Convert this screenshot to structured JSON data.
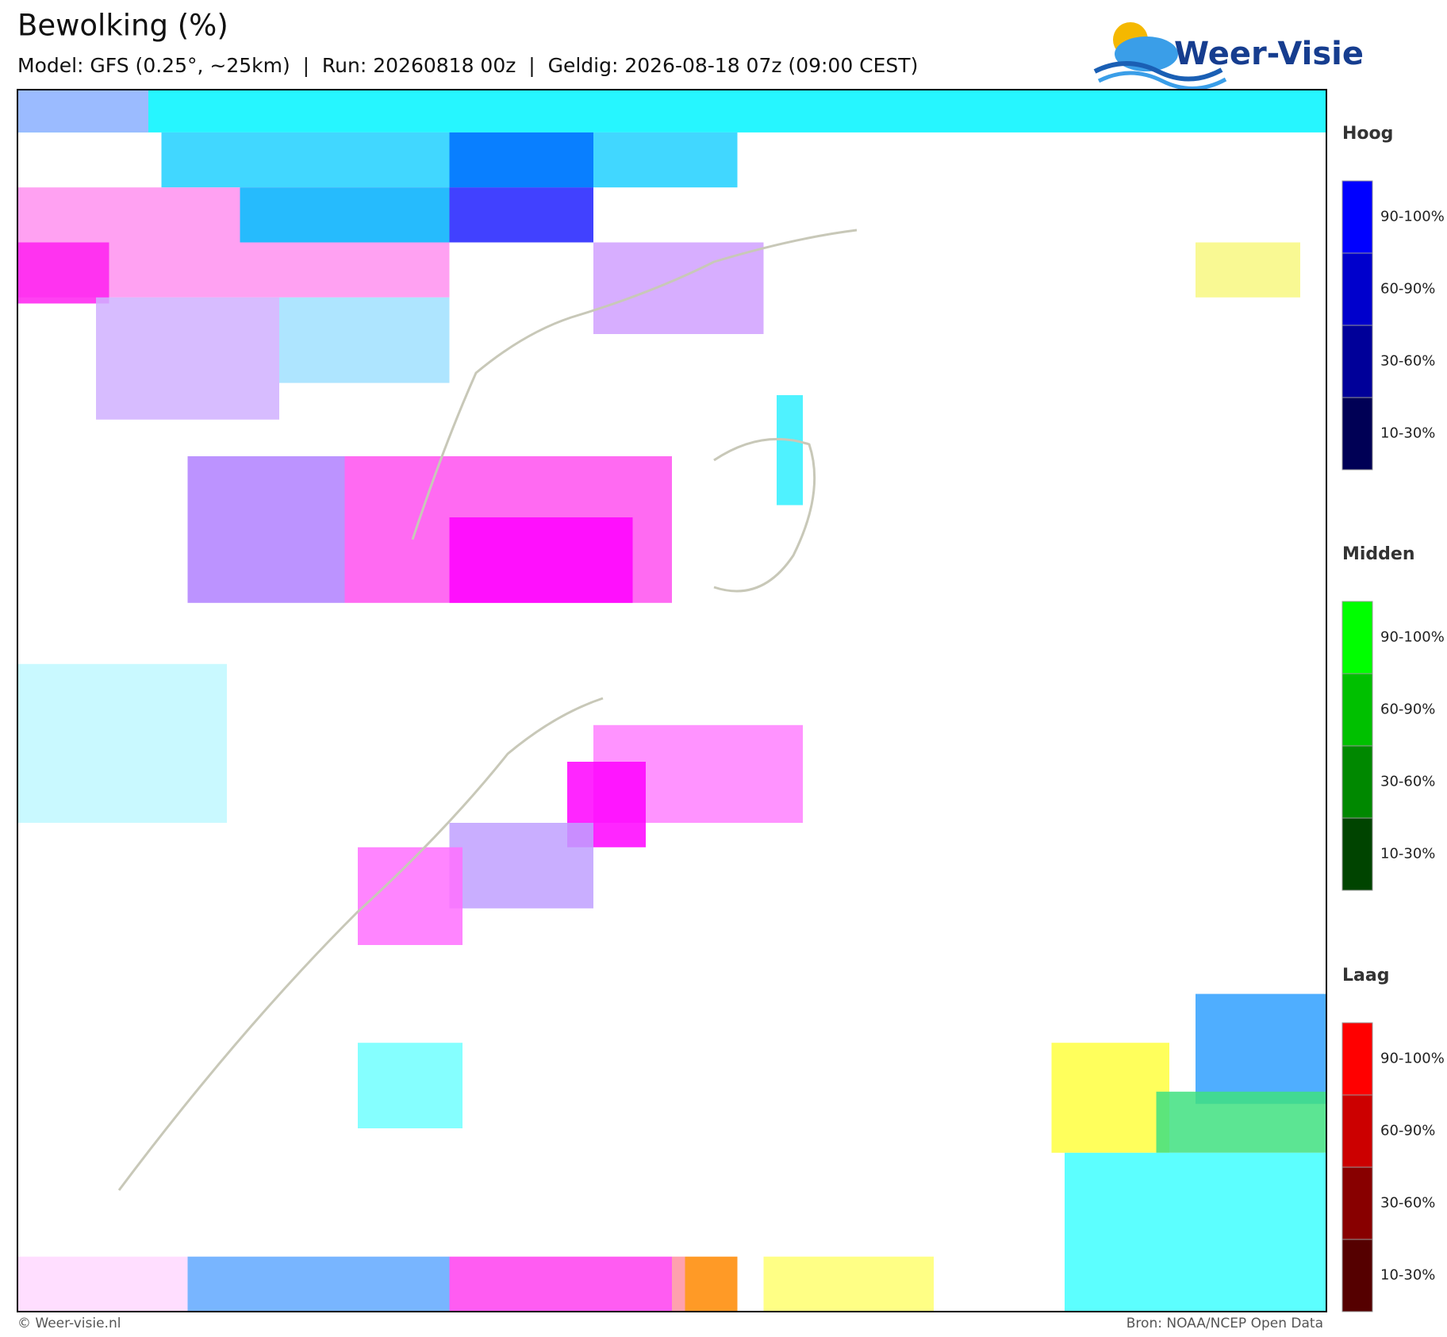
{
  "header": {
    "title": "Bewolking (%)",
    "subtitle": "Model: GFS (0.25°, ~25km)  |  Run: 20260818 00z  |  Geldig: 2026-08-18 07z (09:00 CEST)",
    "logo": "Weer-Visie"
  },
  "legend": [
    {
      "title": "Hoog",
      "labels": [
        "90-100%",
        "60-90%",
        "30-60%",
        "10-30%"
      ]
    },
    {
      "title": "Midden",
      "labels": [
        "90-100%",
        "60-90%",
        "30-60%",
        "10-30%"
      ]
    },
    {
      "title": "Laag",
      "labels": [
        "90-100%",
        "60-90%",
        "30-60%",
        "10-30%"
      ]
    }
  ],
  "footer": {
    "left": "© Weer-visie.nl",
    "right": "Bron: NOAA/NCEP Open Data"
  }
}
